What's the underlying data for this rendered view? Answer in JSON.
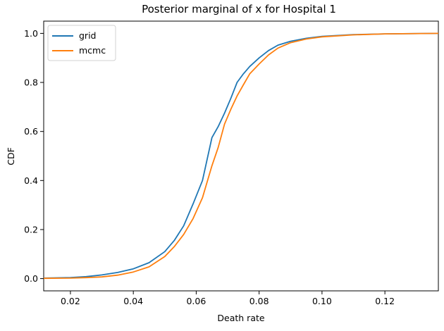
{
  "chart_data": {
    "type": "line",
    "title": "Posterior marginal of x for Hospital 1",
    "xlabel": "Death rate",
    "ylabel": "CDF",
    "xlim": [
      0.0115,
      0.137
    ],
    "ylim": [
      -0.05,
      1.05
    ],
    "xticks": [
      0.02,
      0.04,
      0.06,
      0.08,
      0.1,
      0.12
    ],
    "xtick_labels": [
      "0.02",
      "0.04",
      "0.06",
      "0.08",
      "0.10",
      "0.12"
    ],
    "yticks": [
      0.0,
      0.2,
      0.4,
      0.6,
      0.8,
      1.0
    ],
    "ytick_labels": [
      "0.0",
      "0.2",
      "0.4",
      "0.6",
      "0.8",
      "1.0"
    ],
    "grid": false,
    "legend_position": "top-left",
    "series": [
      {
        "name": "grid",
        "color": "#1f77b4",
        "x": [
          0.0115,
          0.02,
          0.025,
          0.03,
          0.035,
          0.04,
          0.045,
          0.05,
          0.053,
          0.056,
          0.059,
          0.062,
          0.065,
          0.067,
          0.069,
          0.071,
          0.073,
          0.075,
          0.077,
          0.08,
          0.083,
          0.086,
          0.09,
          0.095,
          0.1,
          0.11,
          0.12,
          0.137
        ],
        "y": [
          0.002,
          0.004,
          0.008,
          0.015,
          0.025,
          0.04,
          0.065,
          0.11,
          0.155,
          0.215,
          0.305,
          0.4,
          0.575,
          0.62,
          0.675,
          0.735,
          0.8,
          0.835,
          0.865,
          0.9,
          0.93,
          0.952,
          0.968,
          0.98,
          0.988,
          0.995,
          0.998,
          1.0
        ]
      },
      {
        "name": "mcmc",
        "color": "#ff7f0e",
        "x": [
          0.0115,
          0.02,
          0.025,
          0.03,
          0.035,
          0.04,
          0.045,
          0.05,
          0.053,
          0.056,
          0.059,
          0.062,
          0.065,
          0.067,
          0.069,
          0.071,
          0.073,
          0.075,
          0.077,
          0.08,
          0.083,
          0.086,
          0.09,
          0.095,
          0.1,
          0.11,
          0.12,
          0.137
        ],
        "y": [
          0.001,
          0.002,
          0.004,
          0.007,
          0.014,
          0.027,
          0.048,
          0.09,
          0.13,
          0.18,
          0.245,
          0.33,
          0.46,
          0.535,
          0.63,
          0.69,
          0.745,
          0.79,
          0.835,
          0.875,
          0.912,
          0.94,
          0.962,
          0.977,
          0.986,
          0.994,
          0.998,
          1.0
        ]
      }
    ]
  }
}
